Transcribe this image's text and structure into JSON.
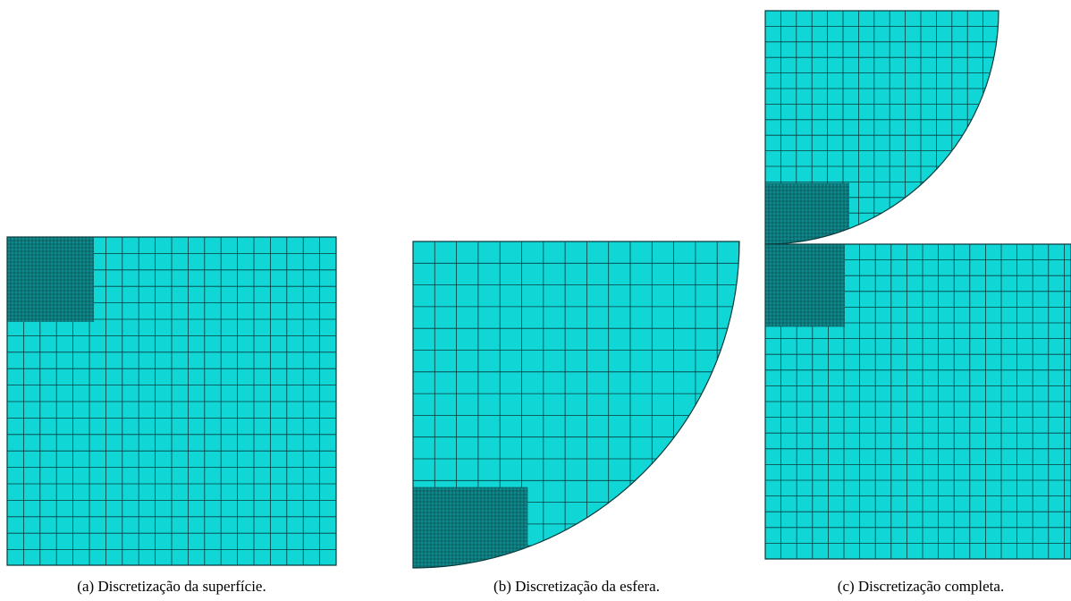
{
  "figures": [
    {
      "caption": "(a) Discretização da superfície."
    },
    {
      "caption": "(b) Discretização da esfera."
    },
    {
      "caption": "(c) Discretização completa."
    }
  ]
}
